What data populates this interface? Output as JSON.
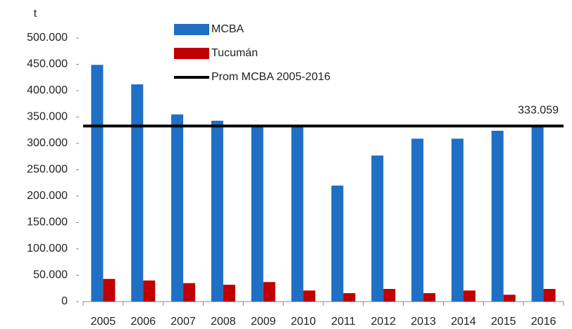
{
  "chart_data": {
    "type": "bar",
    "y_label": "t",
    "categories": [
      "2005",
      "2006",
      "2007",
      "2008",
      "2009",
      "2010",
      "2011",
      "2012",
      "2013",
      "2014",
      "2015",
      "2016"
    ],
    "series": [
      {
        "name": "MCBA",
        "color": "#1f6fc4",
        "values": [
          449000,
          412000,
          355000,
          343000,
          332000,
          333000,
          220000,
          277000,
          309000,
          309000,
          324000,
          332000
        ]
      },
      {
        "name": "Tucumán",
        "color": "#c00000",
        "values": [
          43000,
          40000,
          35000,
          32000,
          37000,
          21000,
          16000,
          24000,
          16000,
          21000,
          13000,
          24000
        ]
      }
    ],
    "reference_line": {
      "name": "Prom MCBA 2005-2016",
      "value": 333059,
      "value_label": "333.059",
      "color": "#000000"
    },
    "ylim": [
      0,
      500000
    ],
    "yticks": [
      0,
      {
        "value": 50000,
        "label": "50.000"
      },
      {
        "value": 100000,
        "label": "100.000"
      },
      {
        "value": 150000,
        "label": "150.000"
      },
      {
        "value": 200000,
        "label": "200.000"
      },
      {
        "value": 250000,
        "label": "250.000"
      },
      {
        "value": 300000,
        "label": "300.000"
      },
      {
        "value": 350000,
        "label": "350.000"
      },
      {
        "value": 400000,
        "label": "400.000"
      },
      {
        "value": 450000,
        "label": "450.000"
      },
      {
        "value": 500000,
        "label": "500.000"
      }
    ],
    "grid": false
  }
}
